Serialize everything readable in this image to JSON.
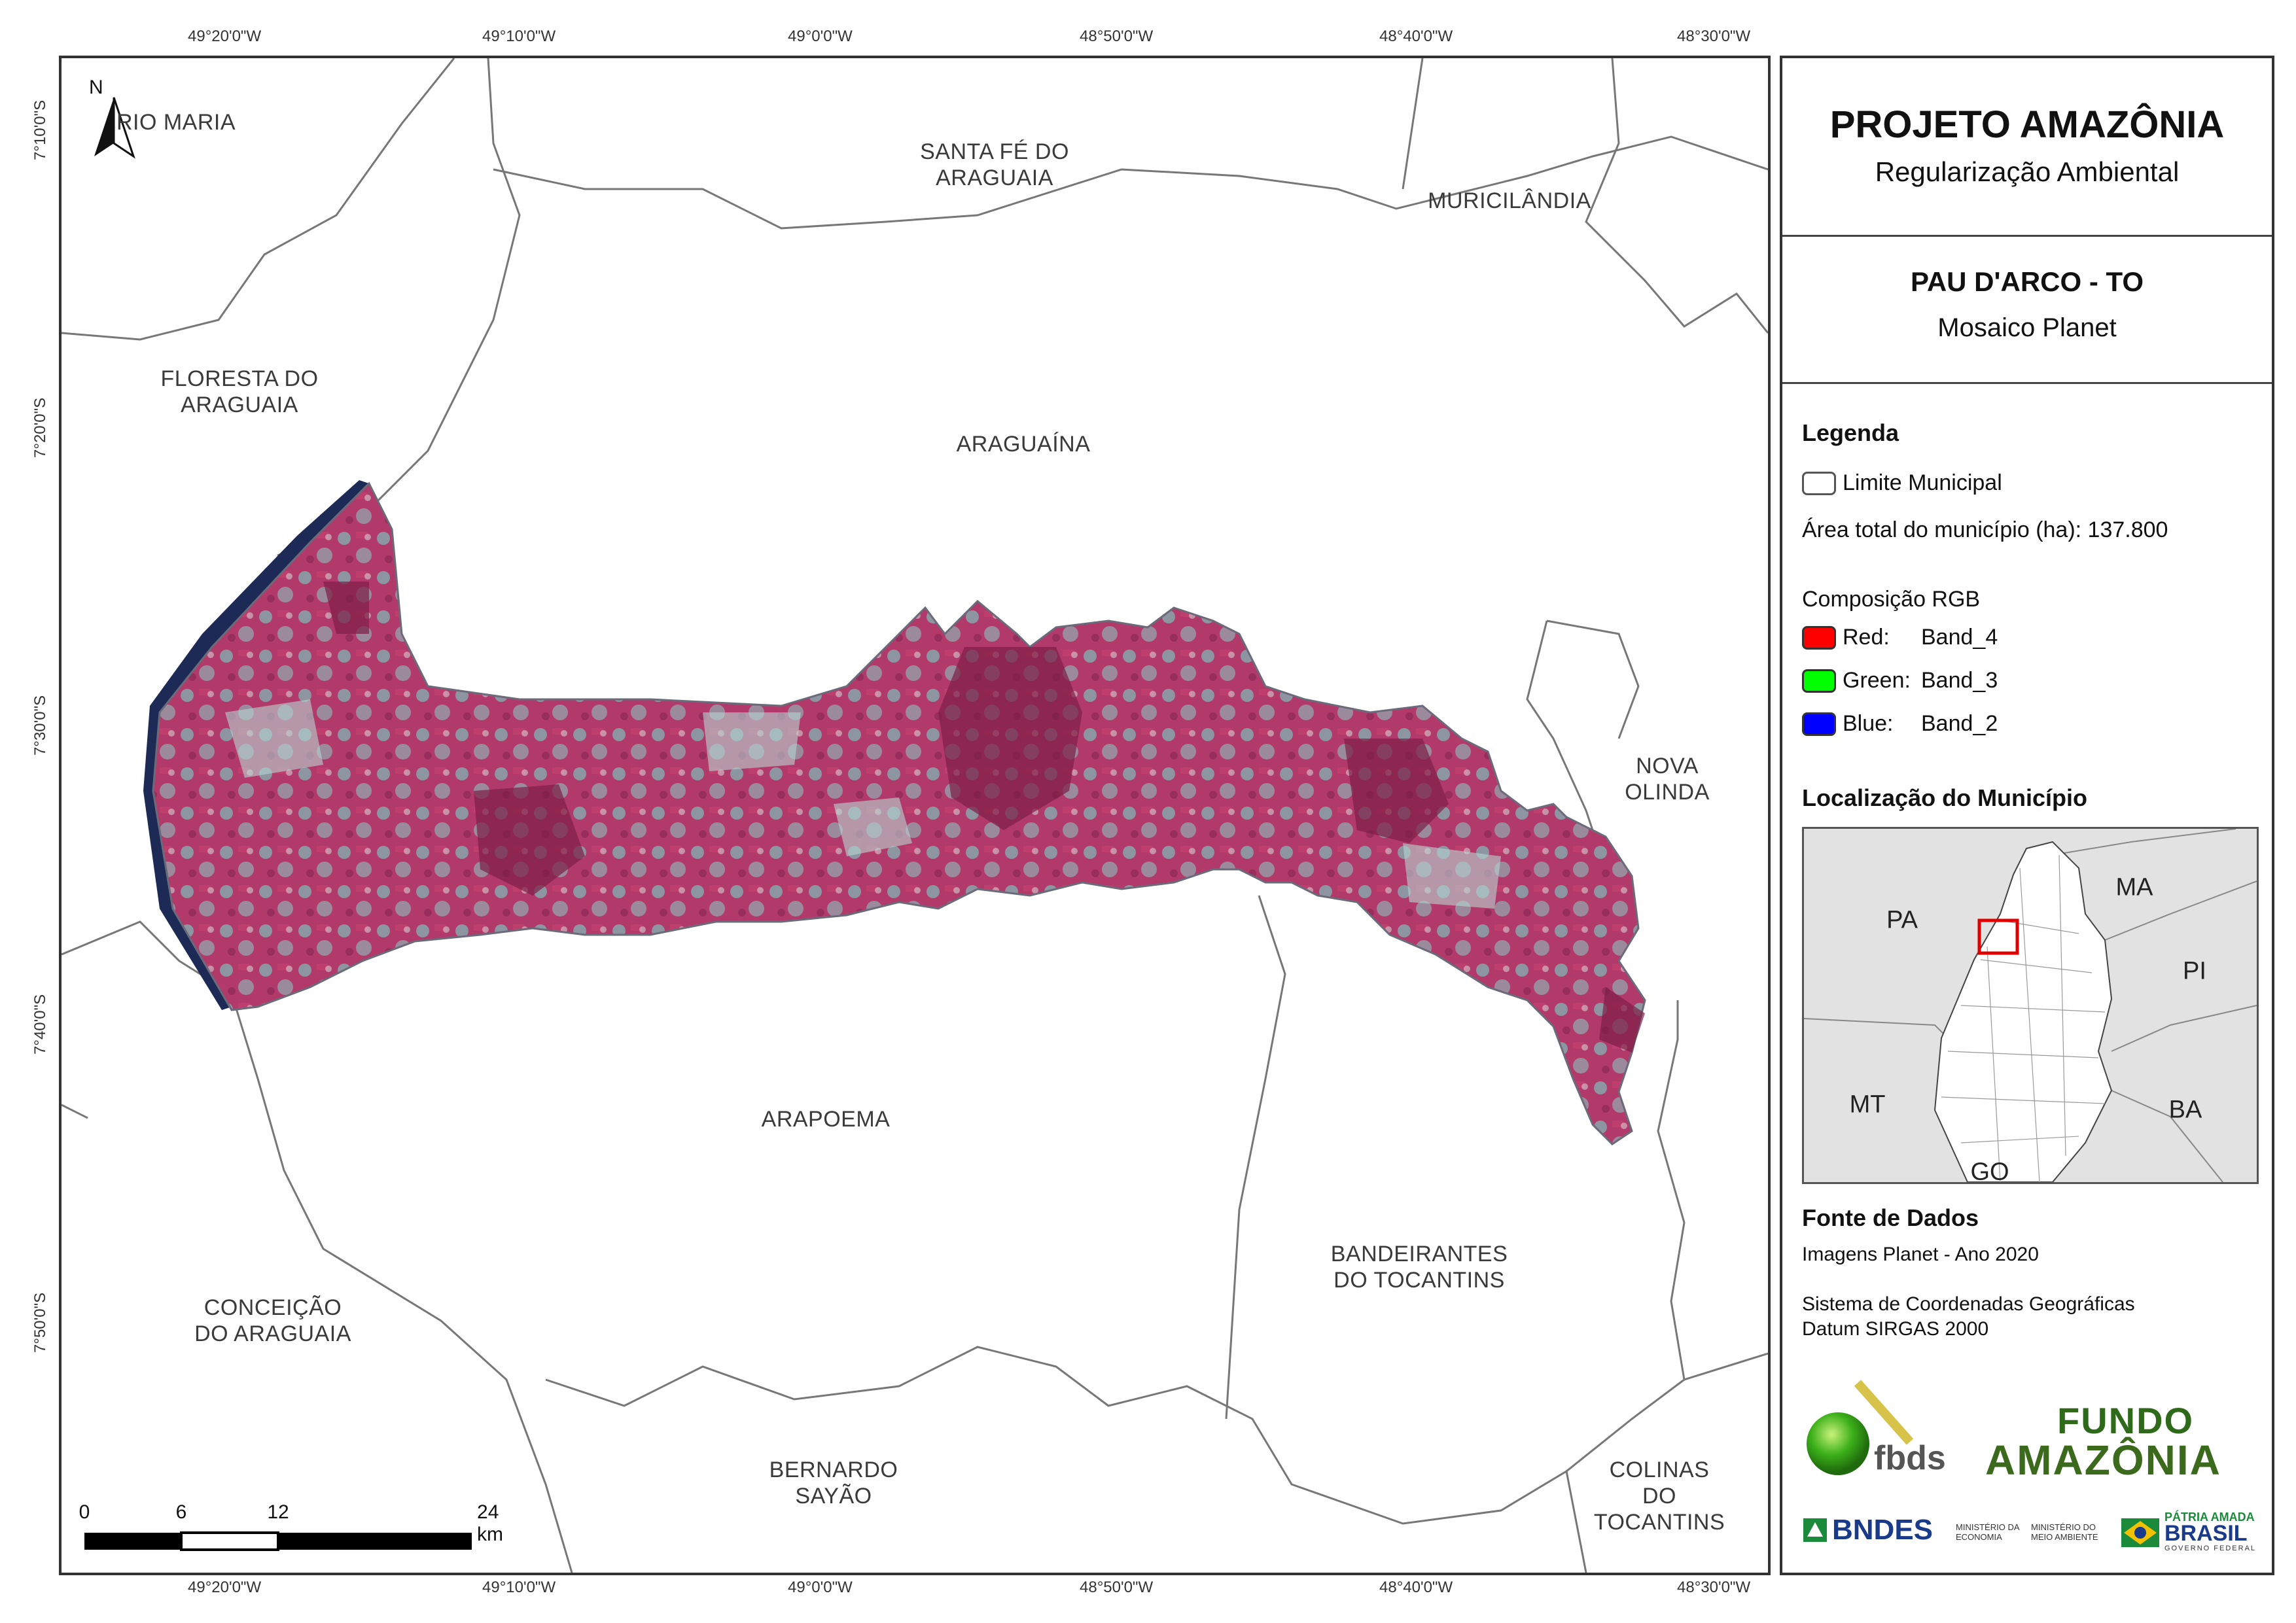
{
  "title": "PROJETO AMAZÔNIA",
  "subtitle": "Regularização Ambiental",
  "map_title": "PAU D'ARCO - TO",
  "map_subtitle": "Mosaico Planet",
  "coords": {
    "top": [
      "49°20'0\"W",
      "49°10'0\"W",
      "49°0'0\"W",
      "48°50'0\"W",
      "48°40'0\"W",
      "48°30'0\"W"
    ],
    "bottom": [
      "49°20'0\"W",
      "49°10'0\"W",
      "49°0'0\"W",
      "48°50'0\"W",
      "48°40'0\"W",
      "48°30'0\"W"
    ],
    "left": [
      "7°10'0\"S",
      "7°20'0\"S",
      "7°30'0\"S",
      "7°40'0\"S",
      "7°50'0\"S"
    ]
  },
  "north_arrow": "N",
  "municipalities": {
    "rio_maria": "RIO MARIA",
    "santa_fe": "SANTA FÉ DO\nARAGUAIA",
    "muricilandia": "MURICILÂNDIA",
    "floresta": "FLORESTA DO\nARAGUAIA",
    "araguaina": "ARAGUAÍNA",
    "nova_olinda": "NOVA OLINDA",
    "arapoema": "ARAPOEMA",
    "bandeirantes": "BANDEIRANTES\nDO TOCANTINS",
    "conceicao": "CONCEIÇÃO\nDO ARAGUAIA",
    "bernardo": "BERNARDO\nSAYÃO",
    "colinas": "COLINAS DO\nTOCANTINS"
  },
  "scale": {
    "labels": [
      "0",
      "6",
      "12",
      "24 km"
    ]
  },
  "legend": {
    "heading": "Legenda",
    "limit_label": "Limite Municipal",
    "area_label": "Área total do município (ha): 137.800",
    "rgb_heading": "Composição RGB",
    "bands": [
      {
        "label": "Red:",
        "value": "Band_4",
        "color": "#ff0000"
      },
      {
        "label": "Green:",
        "value": "Band_3",
        "color": "#00ff00"
      },
      {
        "label": "Blue:",
        "value": "Band_2",
        "color": "#0000ff"
      }
    ]
  },
  "location": {
    "heading": "Localização do Município",
    "states": [
      "PA",
      "MA",
      "PI",
      "MT",
      "BA",
      "GO"
    ]
  },
  "sources": {
    "heading": "Fonte de Dados",
    "images": "Imagens Planet - Ano 2020",
    "crs1": "Sistema de Coordenadas Geográficas",
    "crs2": "Datum SIRGAS 2000"
  },
  "logos": {
    "fbds": "fbds",
    "fundo1": "FUNDO",
    "fundo2": "AMAZÔNIA",
    "bndes": "BNDES",
    "min_economia": "MINISTÉRIO DA ECONOMIA",
    "min_ambiente": "MINISTÉRIO DO MEIO AMBIENTE",
    "patria": "PÁTRIA AMADA",
    "brasil": "BRASIL",
    "governo": "GOVERNO FEDERAL"
  },
  "colors": {
    "frame": "#333333",
    "imagery": "#b23a6a",
    "imagery_light": "#7fb3b1",
    "river": "#1c2a55",
    "inset_box": "#e00000"
  }
}
